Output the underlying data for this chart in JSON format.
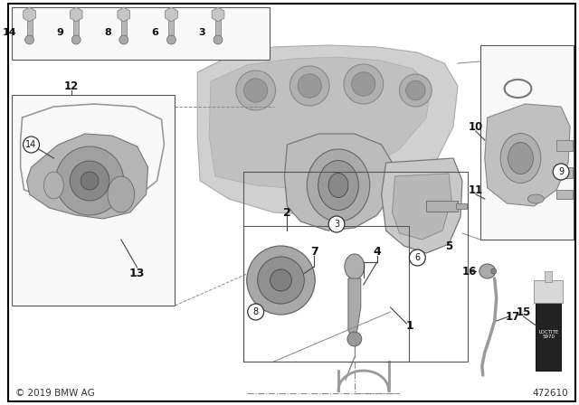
{
  "diagram_number": "472610",
  "copyright": "© 2019 BMW AG",
  "bg_color": "#ffffff",
  "border_color": "#000000",
  "fig_width": 6.4,
  "fig_height": 4.48,
  "dpi": 100,
  "gray_light": "#d8d8d8",
  "gray_mid": "#b0b0b0",
  "gray_dark": "#888888",
  "gray_darker": "#666666",
  "line_color": "#444444",
  "label_color": "#111111",
  "circle_bg": "#ffffff",
  "circle_border": "#333333"
}
